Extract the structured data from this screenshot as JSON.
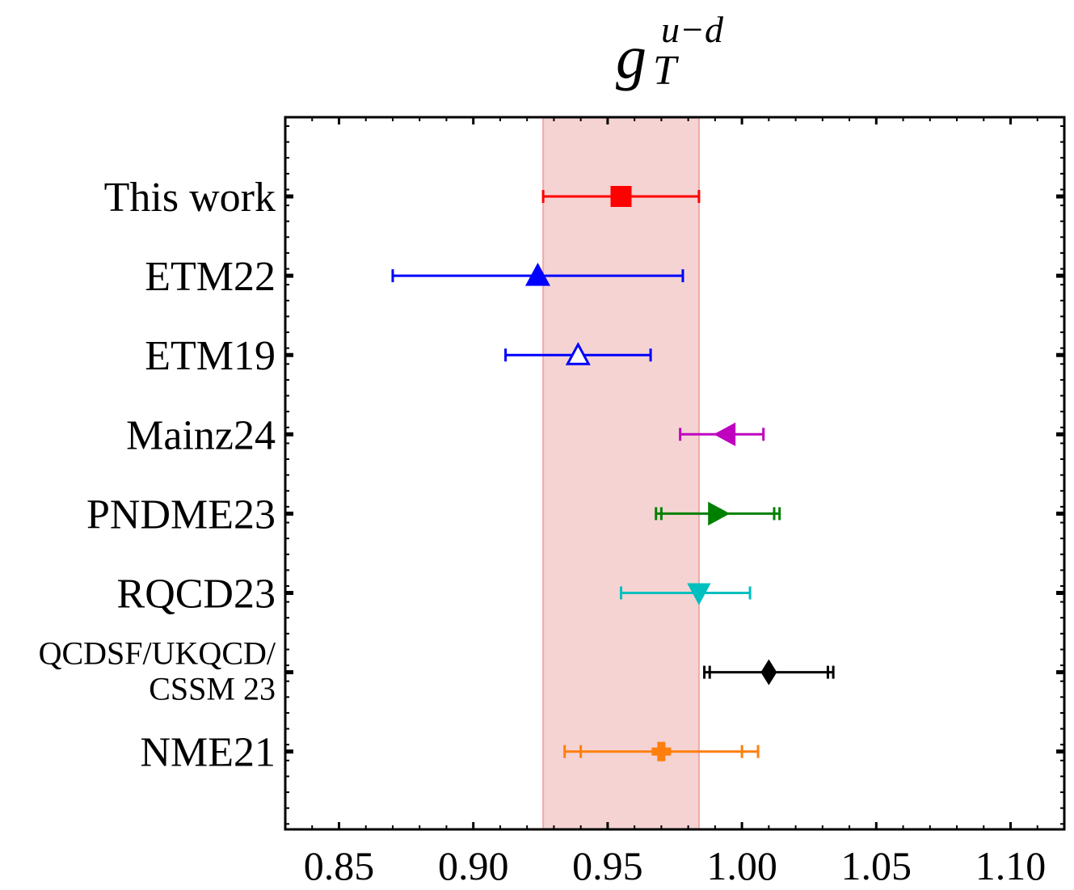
{
  "chart_data": {
    "type": "forest",
    "title": "g_T^{u-d}",
    "title_parts": {
      "base": "g",
      "sub": "T",
      "sup": "u−d"
    },
    "xlim": [
      0.83,
      1.12
    ],
    "xticks": [
      "0.85",
      "0.90",
      "0.95",
      "1.00",
      "1.05",
      "1.10"
    ],
    "xtick_values": [
      0.85,
      0.9,
      0.95,
      1.0,
      1.05,
      1.1
    ],
    "band": {
      "lo": 0.926,
      "hi": 0.984,
      "color": "#f5d3d3",
      "edge": "#eeaaaa"
    },
    "series": [
      {
        "name": "This work",
        "lines": [
          "This work"
        ],
        "value": 0.955,
        "err_lo": 0.926,
        "err_hi": 0.984,
        "err_lo2": null,
        "err_hi2": null,
        "marker": "square",
        "filled": true,
        "color": "#ff0000"
      },
      {
        "name": "ETM22",
        "lines": [
          "ETM22"
        ],
        "value": 0.924,
        "err_lo": 0.87,
        "err_hi": 0.978,
        "err_lo2": null,
        "err_hi2": null,
        "marker": "triangle-up",
        "filled": true,
        "color": "#0000ff"
      },
      {
        "name": "ETM19",
        "lines": [
          "ETM19"
        ],
        "value": 0.939,
        "err_lo": 0.912,
        "err_hi": 0.966,
        "err_lo2": null,
        "err_hi2": null,
        "marker": "triangle-up",
        "filled": false,
        "color": "#0000ff"
      },
      {
        "name": "Mainz24",
        "lines": [
          "Mainz24"
        ],
        "value": 0.994,
        "err_lo": 0.977,
        "err_hi": 1.008,
        "err_lo2": null,
        "err_hi2": null,
        "marker": "triangle-left",
        "filled": true,
        "color": "#bf00bf"
      },
      {
        "name": "PNDME23",
        "lines": [
          "PNDME23"
        ],
        "value": 0.991,
        "err_lo": 0.968,
        "err_hi": 1.014,
        "err_lo2": 0.97,
        "err_hi2": 1.012,
        "marker": "triangle-right",
        "filled": true,
        "color": "#008000"
      },
      {
        "name": "RQCD23",
        "lines": [
          "RQCD23"
        ],
        "value": 0.984,
        "err_lo": 0.955,
        "err_hi": 1.003,
        "err_lo2": null,
        "err_hi2": null,
        "marker": "triangle-down",
        "filled": true,
        "color": "#00bfbf"
      },
      {
        "name": "QCDSF/UKQCD/CSSM 23",
        "lines": [
          "QCDSF/UKQCD/",
          "CSSM 23"
        ],
        "value": 1.01,
        "err_lo": 0.986,
        "err_hi": 1.034,
        "err_lo2": 0.988,
        "err_hi2": 1.032,
        "marker": "diamond",
        "filled": true,
        "color": "#000000"
      },
      {
        "name": "NME21",
        "lines": [
          "NME21"
        ],
        "value": 0.97,
        "err_lo": 0.934,
        "err_hi": 1.006,
        "err_lo2": 0.94,
        "err_hi2": 1.0,
        "marker": "plus",
        "filled": true,
        "color": "#ff7f0e"
      }
    ]
  }
}
